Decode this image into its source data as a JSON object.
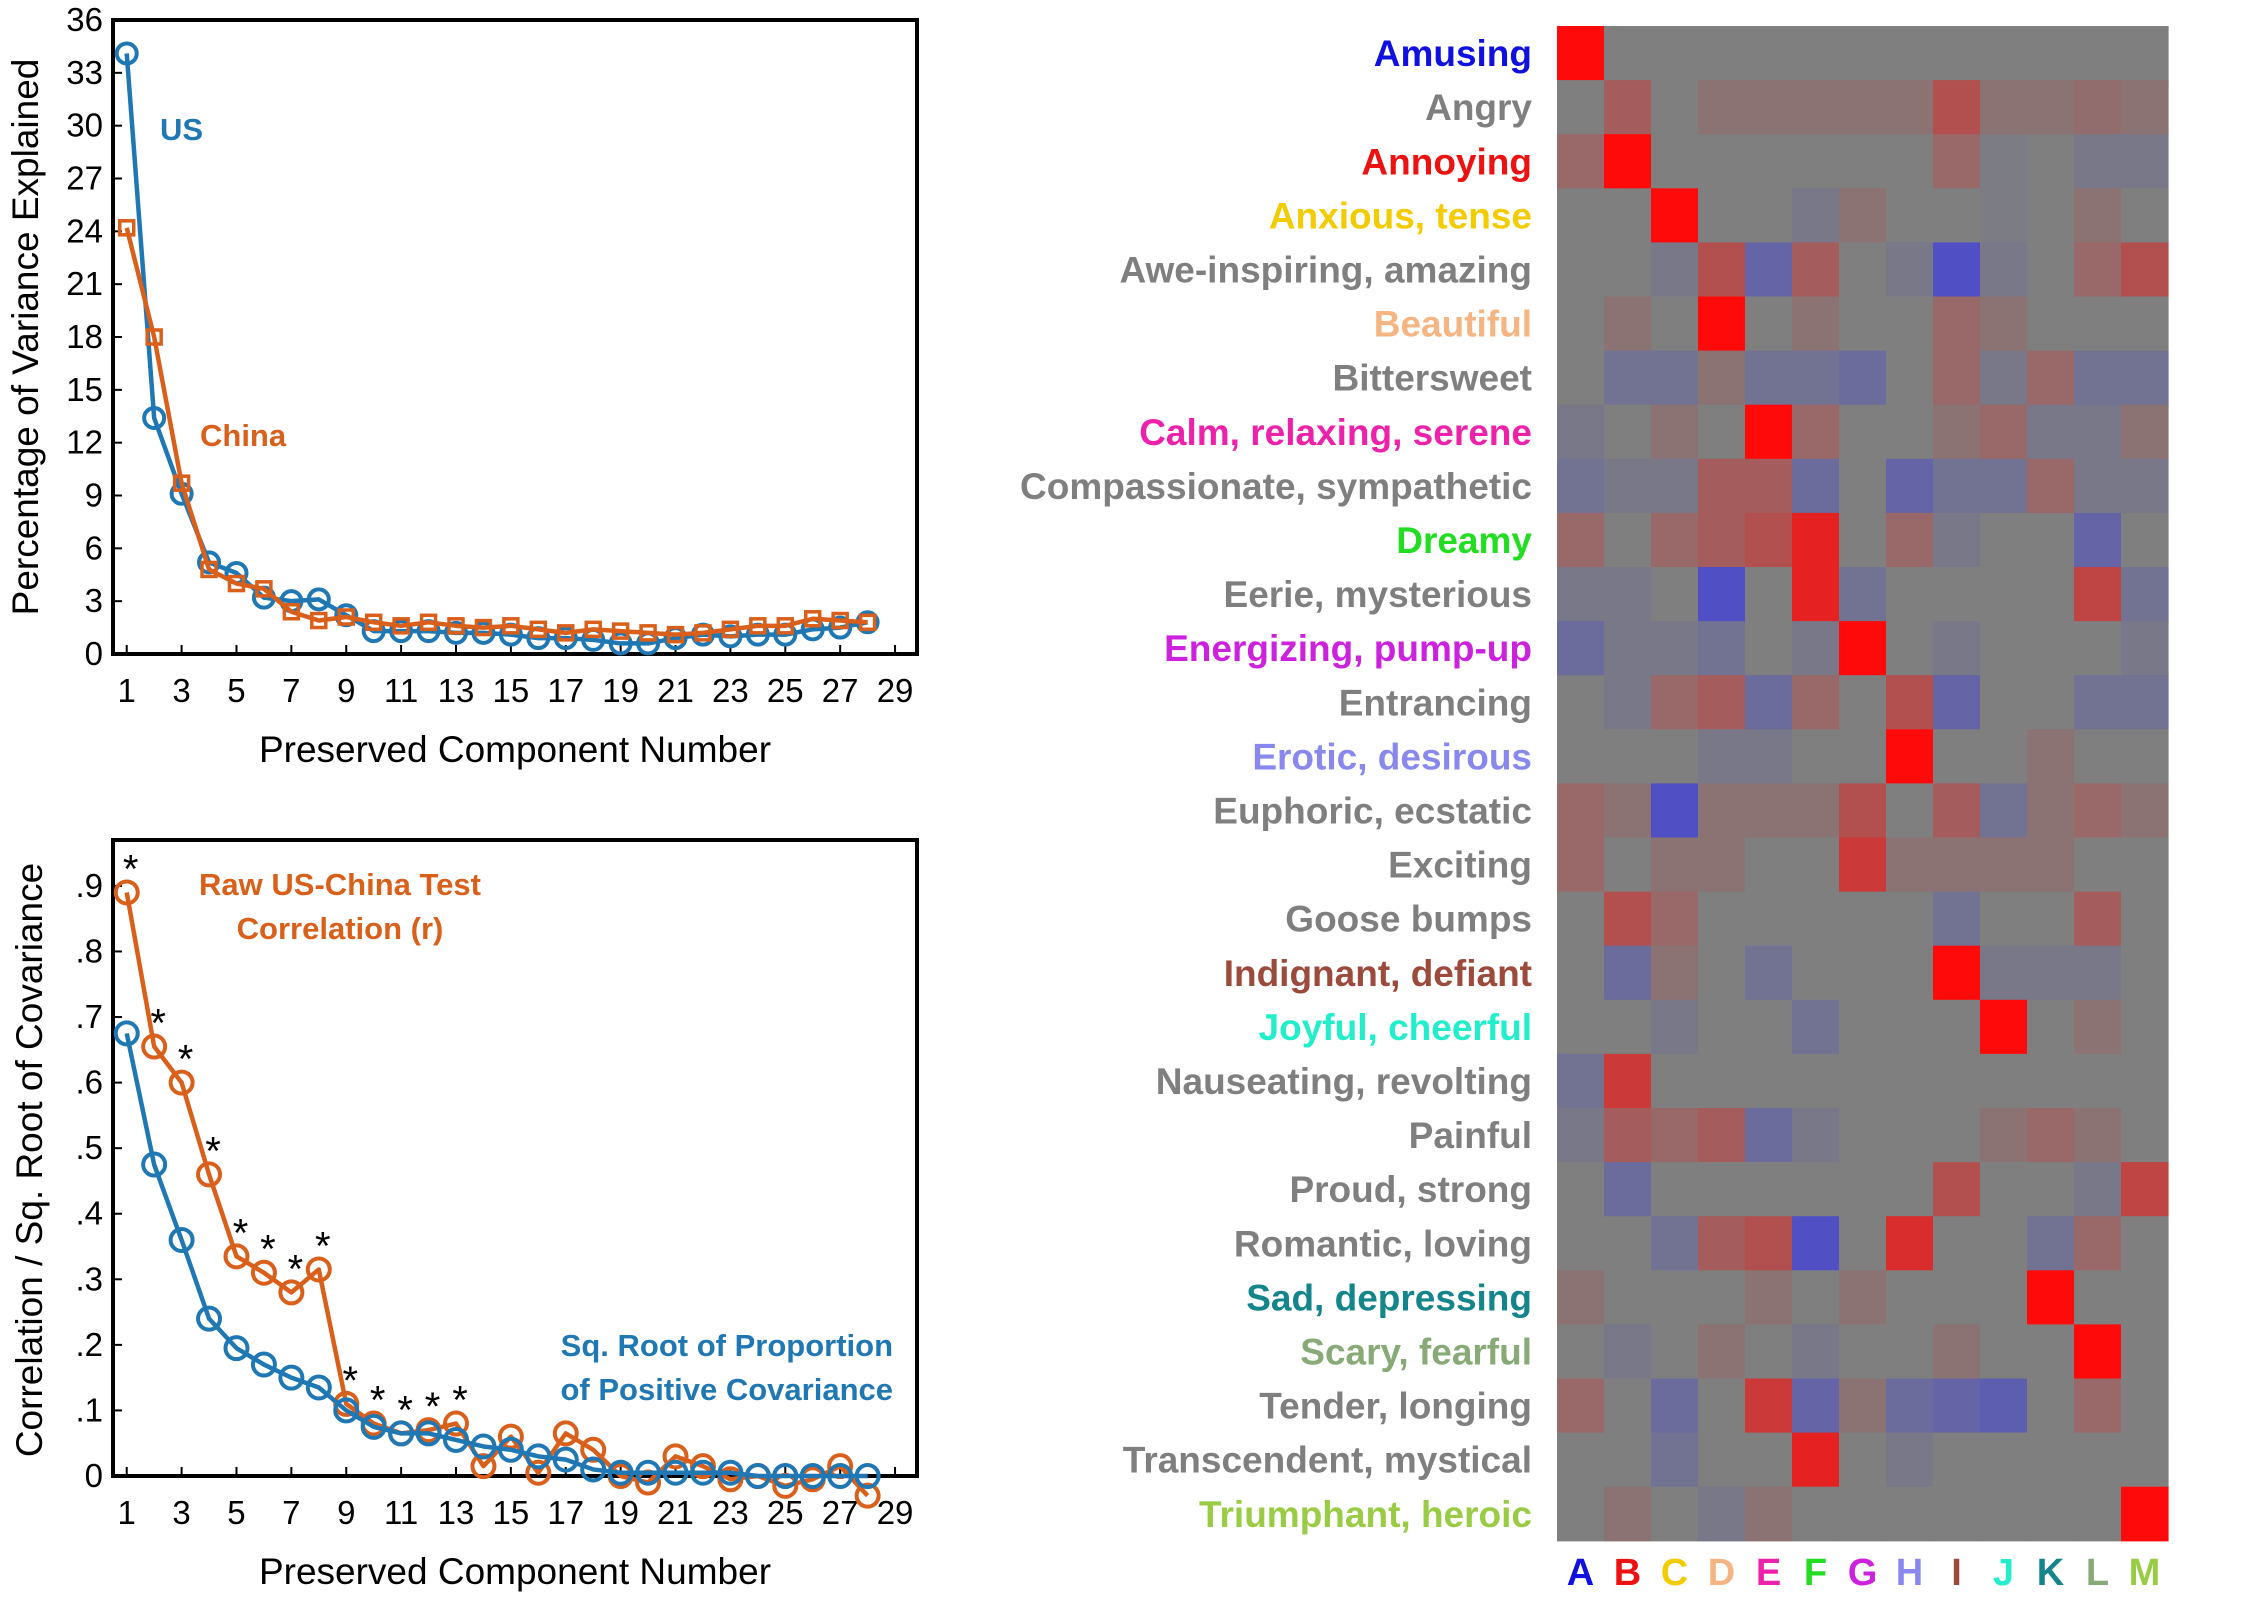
{
  "chart_data": [
    {
      "type": "line",
      "xlabel": "Preserved Component Number",
      "ylabel": "Percentage of Variance Explained",
      "xlim": [
        0.5,
        29.8
      ],
      "ylim": [
        0,
        36
      ],
      "xticks": [
        1,
        3,
        5,
        7,
        9,
        11,
        13,
        15,
        17,
        19,
        21,
        23,
        25,
        27,
        29
      ],
      "xtick_labels": [
        "1",
        "3",
        "5",
        "7",
        "9",
        "11",
        "13",
        "15",
        "17",
        "19",
        "21",
        "23",
        "25",
        "27",
        "29"
      ],
      "yticks": [
        0,
        3,
        6,
        9,
        12,
        15,
        18,
        21,
        24,
        27,
        30,
        33,
        36
      ],
      "ytick_labels": [
        "0",
        "3",
        "6",
        "9",
        "12",
        "15",
        "18",
        "21",
        "24",
        "27",
        "30",
        "33",
        "36"
      ],
      "series": [
        {
          "name": "US",
          "label": "US",
          "color": "#1f77b4",
          "marker": "circle",
          "x": [
            1,
            2,
            3,
            4,
            5,
            6,
            7,
            8,
            9,
            10,
            11,
            12,
            13,
            14,
            15,
            16,
            17,
            18,
            19,
            20,
            21,
            22,
            23,
            24,
            25,
            26,
            27,
            28
          ],
          "values": [
            34.1,
            13.4,
            9.1,
            5.2,
            4.6,
            3.2,
            3.0,
            3.1,
            2.2,
            1.3,
            1.3,
            1.3,
            1.2,
            1.2,
            1.1,
            0.9,
            0.9,
            0.8,
            0.6,
            0.6,
            0.9,
            1.1,
            1.0,
            1.1,
            1.1,
            1.4,
            1.5,
            1.8
          ]
        },
        {
          "name": "China",
          "label": "China",
          "color": "#d95f1a",
          "marker": "square",
          "x": [
            1,
            2,
            3,
            4,
            5,
            6,
            7,
            8,
            9,
            10,
            11,
            12,
            13,
            14,
            15,
            16,
            17,
            18,
            19,
            20,
            21,
            22,
            23,
            24,
            25,
            26,
            27,
            28
          ],
          "values": [
            24.2,
            18.0,
            9.7,
            4.8,
            4.0,
            3.7,
            2.4,
            1.9,
            2.1,
            1.8,
            1.6,
            1.8,
            1.6,
            1.5,
            1.6,
            1.4,
            1.2,
            1.4,
            1.3,
            1.2,
            1.1,
            1.2,
            1.4,
            1.6,
            1.6,
            2.0,
            1.9,
            1.8
          ]
        }
      ]
    },
    {
      "type": "line",
      "xlabel": "Preserved Component Number",
      "ylabel": "Correlation / Sq. Root of Covariance",
      "xlim": [
        0.5,
        29.8
      ],
      "ylim": [
        0,
        0.97
      ],
      "xticks": [
        1,
        3,
        5,
        7,
        9,
        11,
        13,
        15,
        17,
        19,
        21,
        23,
        25,
        27,
        29
      ],
      "xtick_labels": [
        "1",
        "3",
        "5",
        "7",
        "9",
        "11",
        "13",
        "15",
        "17",
        "19",
        "21",
        "23",
        "25",
        "27",
        "29"
      ],
      "yticks": [
        0,
        0.1,
        0.2,
        0.3,
        0.4,
        0.5,
        0.6,
        0.7,
        0.8,
        0.9
      ],
      "ytick_labels": [
        "0",
        ".1",
        ".2",
        ".3",
        ".4",
        ".5",
        ".6",
        ".7",
        ".8",
        ".9"
      ],
      "significance_marker": "*",
      "series": [
        {
          "name": "Raw US-China Test Correlation (r)",
          "label_lines": [
            "Raw US-China Test",
            "Correlation (r)"
          ],
          "color": "#d95f1a",
          "marker": "circle",
          "x": [
            1,
            2,
            3,
            4,
            5,
            6,
            7,
            8,
            9,
            10,
            11,
            12,
            13,
            14,
            15,
            16,
            17,
            18,
            19,
            20,
            21,
            22,
            23,
            24,
            25,
            26,
            27,
            28
          ],
          "values": [
            0.89,
            0.655,
            0.6,
            0.46,
            0.335,
            0.31,
            0.28,
            0.315,
            0.11,
            0.08,
            0.065,
            0.07,
            0.08,
            0.015,
            0.06,
            0.005,
            0.065,
            0.04,
            0.0,
            -0.01,
            0.03,
            0.015,
            -0.005,
            0.0,
            -0.015,
            -0.005,
            0.015,
            -0.03
          ],
          "significant": [
            1,
            2,
            3,
            4,
            5,
            6,
            7,
            8,
            9,
            10,
            11,
            12,
            13
          ]
        },
        {
          "name": "Sq. Root of Proportion of Positive Covariance",
          "label_lines": [
            "Sq. Root of Proportion",
            "of Positive Covariance"
          ],
          "color": "#1f77b4",
          "marker": "circle",
          "x": [
            1,
            2,
            3,
            4,
            5,
            6,
            7,
            8,
            9,
            10,
            11,
            12,
            13,
            14,
            15,
            16,
            17,
            18,
            19,
            20,
            21,
            22,
            23,
            24,
            25,
            26,
            27,
            28
          ],
          "values": [
            0.675,
            0.475,
            0.36,
            0.24,
            0.195,
            0.17,
            0.15,
            0.135,
            0.1,
            0.075,
            0.065,
            0.065,
            0.055,
            0.045,
            0.04,
            0.03,
            0.025,
            0.01,
            0.005,
            0.005,
            0.005,
            0.005,
            0.005,
            0.0,
            0.0,
            0.0,
            0.0,
            0.0
          ]
        }
      ]
    },
    {
      "type": "heatmap",
      "rows": [
        "Amusing",
        "Angry",
        "Annoying",
        "Anxious, tense",
        "Awe-inspiring, amazing",
        "Beautiful",
        "Bittersweet",
        "Calm, relaxing, serene",
        "Compassionate, sympathetic",
        "Dreamy",
        "Eerie, mysterious",
        "Energizing, pump-up",
        "Entrancing",
        "Erotic, desirous",
        "Euphoric, ecstatic",
        "Exciting",
        "Goose bumps",
        "Indignant, defiant",
        "Joyful, cheerful",
        "Nauseating, revolting",
        "Painful",
        "Proud, strong",
        "Romantic, loving",
        "Sad, depressing",
        "Scary, fearful",
        "Tender, longing",
        "Transcendent, mystical",
        "Triumphant, heroic"
      ],
      "row_colors": [
        "#1010e0",
        "#7f7f7f",
        "#ee1111",
        "#f2cc00",
        "#7f7f7f",
        "#f5b583",
        "#7f7f7f",
        "#ee22aa",
        "#7f7f7f",
        "#22dd22",
        "#7f7f7f",
        "#cc22dd",
        "#7f7f7f",
        "#8888ee",
        "#7f7f7f",
        "#7f7f7f",
        "#7f7f7f",
        "#9b4a3c",
        "#22eecc",
        "#7f7f7f",
        "#7f7f7f",
        "#7f7f7f",
        "#7f7f7f",
        "#14858a",
        "#88aa77",
        "#7f7f7f",
        "#7f7f7f",
        "#99cc44"
      ],
      "columns": [
        "A",
        "B",
        "C",
        "D",
        "E",
        "F",
        "G",
        "H",
        "I",
        "J",
        "K",
        "L",
        "M"
      ],
      "column_colors": [
        "#1010e0",
        "#ee1111",
        "#f2cc00",
        "#f5b583",
        "#ee22aa",
        "#22dd22",
        "#cc22dd",
        "#8888ee",
        "#9b4a3c",
        "#22eecc",
        "#14858a",
        "#88aa77",
        "#99cc44"
      ],
      "value_range": [
        -1,
        1
      ],
      "colormap": "blue-gray-red",
      "values": [
        [
          1,
          0,
          0,
          0,
          0,
          0,
          0,
          0,
          0,
          0,
          0,
          0,
          0
        ],
        [
          0,
          0.3,
          0,
          0.1,
          0.1,
          0.1,
          0.1,
          0.1,
          0.4,
          0.1,
          0.1,
          0.15,
          0.1
        ],
        [
          0.2,
          1,
          0,
          0,
          0,
          0,
          0,
          0,
          0.2,
          -0.05,
          0,
          -0.1,
          -0.1
        ],
        [
          0,
          0,
          1,
          0,
          0,
          -0.1,
          0.1,
          0,
          0,
          -0.05,
          0,
          0.1,
          0
        ],
        [
          0,
          0,
          -0.1,
          0.4,
          -0.4,
          0.3,
          0,
          -0.1,
          -0.7,
          -0.1,
          0,
          0.2,
          0.4
        ],
        [
          0,
          0.1,
          0,
          1,
          0,
          0.1,
          0,
          0,
          0.2,
          0.1,
          0,
          0,
          0
        ],
        [
          0,
          -0.2,
          -0.2,
          0.1,
          -0.2,
          -0.2,
          -0.3,
          0,
          0.2,
          -0.1,
          0.2,
          -0.2,
          -0.2
        ],
        [
          -0.1,
          0,
          0.1,
          0,
          1,
          0.2,
          0,
          0,
          0.1,
          0.2,
          -0.1,
          -0.1,
          0.1
        ],
        [
          -0.2,
          -0.1,
          -0.1,
          0.3,
          0.3,
          -0.3,
          0,
          -0.4,
          -0.2,
          -0.2,
          0.2,
          -0.1,
          -0.1
        ],
        [
          0.2,
          0,
          0.2,
          0.3,
          0.4,
          0.8,
          0,
          0.2,
          -0.1,
          0,
          0,
          -0.4,
          0
        ],
        [
          -0.1,
          -0.1,
          0,
          -0.7,
          0,
          0.8,
          -0.2,
          0,
          0,
          0,
          0,
          0.5,
          -0.2
        ],
        [
          -0.3,
          -0.1,
          -0.1,
          -0.2,
          0,
          -0.1,
          1,
          0,
          -0.1,
          0,
          0,
          0,
          -0.1
        ],
        [
          0,
          -0.1,
          0.2,
          0.3,
          -0.3,
          0.2,
          0,
          0.4,
          -0.4,
          0,
          0,
          -0.2,
          -0.2
        ],
        [
          0,
          0,
          0,
          -0.1,
          -0.1,
          0,
          0,
          1,
          0,
          0,
          0.1,
          0,
          0
        ],
        [
          0.2,
          0.1,
          -0.7,
          0.1,
          0.1,
          0.1,
          0.4,
          0,
          0.3,
          -0.2,
          0.1,
          0.2,
          0.1
        ],
        [
          0.2,
          0,
          0.1,
          0.1,
          0,
          0,
          0.6,
          0.1,
          0.1,
          0.1,
          0.1,
          0,
          0
        ],
        [
          0,
          0.4,
          0.2,
          0,
          0,
          0,
          0,
          0,
          -0.2,
          0,
          0,
          0.3,
          0
        ],
        [
          0,
          -0.3,
          0.1,
          0,
          -0.2,
          0,
          0,
          0,
          1,
          -0.1,
          -0.1,
          -0.1,
          0
        ],
        [
          0,
          0,
          -0.1,
          0,
          0,
          -0.2,
          0,
          0,
          0,
          1,
          0,
          0.1,
          0
        ],
        [
          -0.2,
          0.6,
          0,
          0,
          0,
          0,
          0,
          0,
          0,
          0,
          0,
          0,
          0
        ],
        [
          -0.1,
          0.3,
          0.2,
          0.3,
          -0.3,
          -0.1,
          0,
          0,
          0,
          0.1,
          0.2,
          0.1,
          0
        ],
        [
          0,
          -0.3,
          0,
          0,
          0,
          0,
          0,
          0,
          0.4,
          0,
          0,
          -0.1,
          0.5
        ],
        [
          0,
          0,
          -0.2,
          0.3,
          0.4,
          -0.7,
          0,
          0.7,
          0,
          0,
          -0.2,
          0.2,
          0
        ],
        [
          0.1,
          0,
          0,
          0,
          0.1,
          0,
          0.1,
          0,
          0,
          0,
          1,
          0,
          0
        ],
        [
          0,
          -0.1,
          0,
          0.1,
          0,
          -0.1,
          0,
          0,
          0.1,
          0,
          0,
          1,
          0
        ],
        [
          0.2,
          0,
          -0.3,
          0,
          0.6,
          -0.4,
          0.1,
          -0.3,
          -0.4,
          -0.5,
          0,
          0.2,
          0
        ],
        [
          0,
          0,
          -0.2,
          0,
          0,
          0.8,
          0,
          -0.1,
          0,
          0,
          0,
          0,
          0
        ],
        [
          0,
          0.1,
          0,
          -0.1,
          0.1,
          0,
          0,
          0,
          0,
          0,
          0,
          0,
          1
        ]
      ]
    }
  ]
}
